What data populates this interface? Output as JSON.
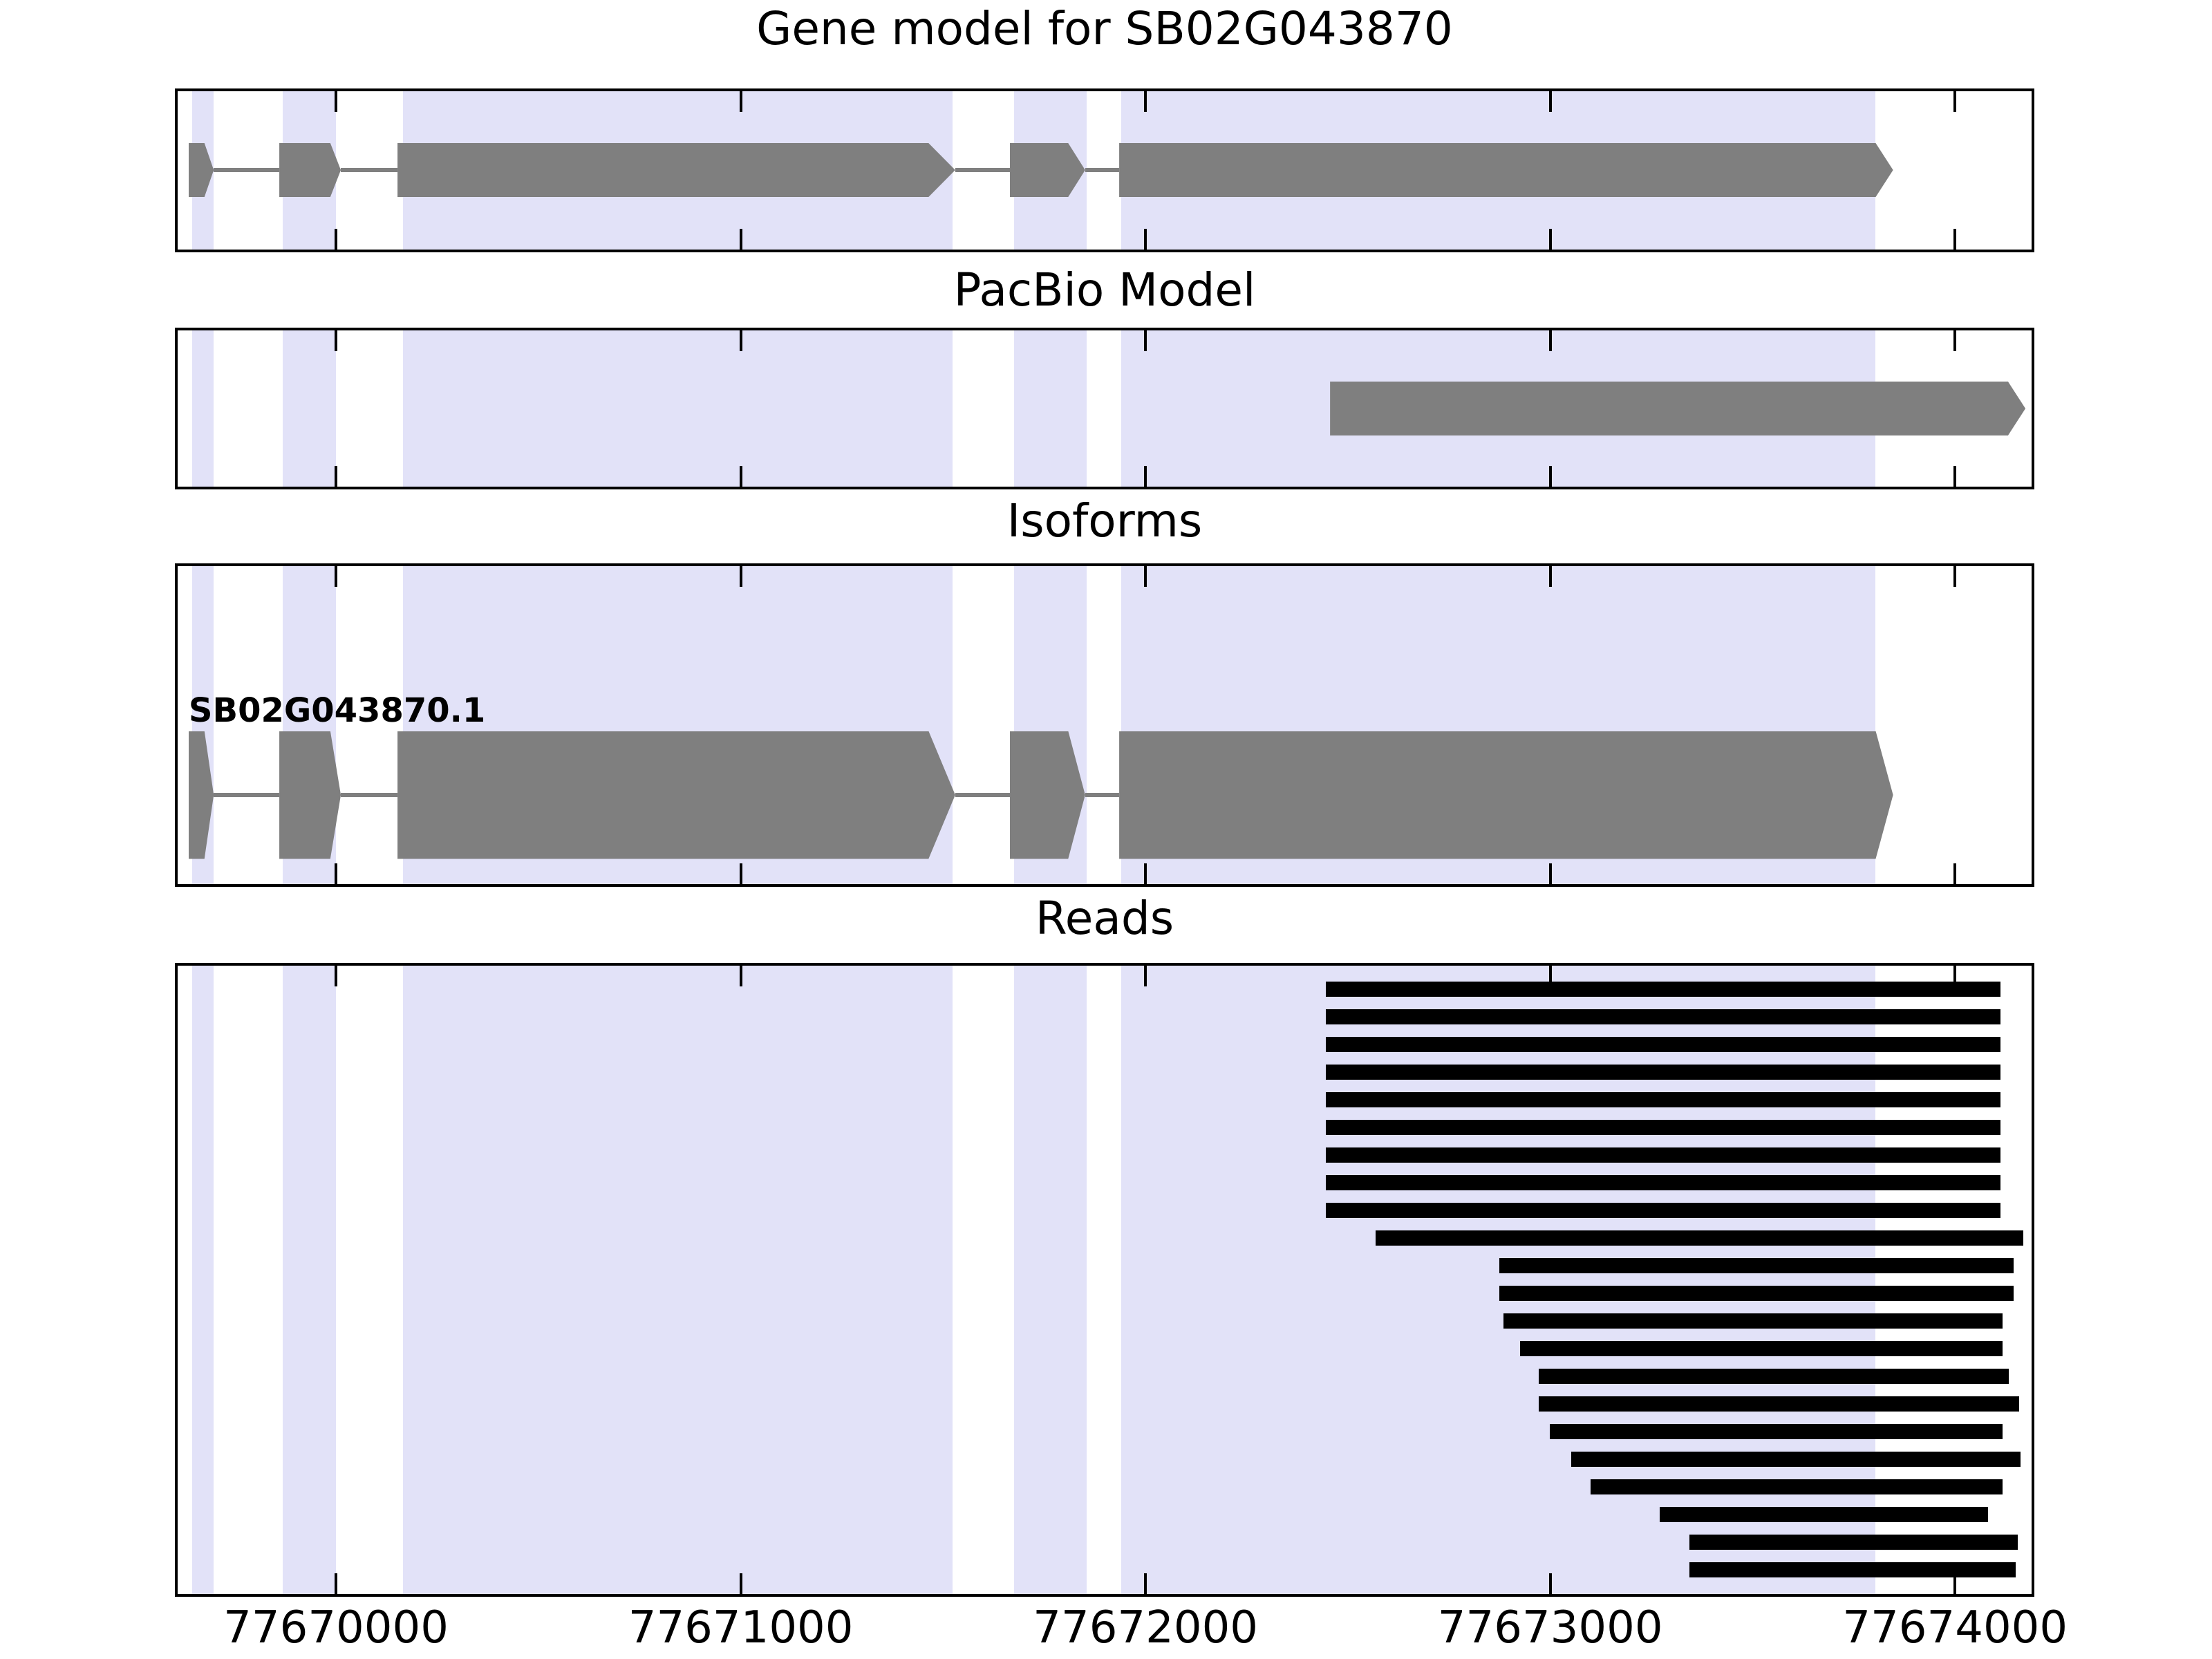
{
  "figure": {
    "colors": {
      "background": "#ffffff",
      "highlight_band": "#e2e2f8",
      "exon_gray": "#7f7f7f",
      "read_black": "#000000",
      "border_black": "#000000"
    }
  },
  "chart_data": {
    "type": "gene-model-tracks",
    "subtype": "genome-browser",
    "grid": false,
    "xlim_bp": [
      77669602,
      77674196
    ],
    "xaxis_ticks": [
      {
        "bp": 77670000,
        "label": "77670000"
      },
      {
        "bp": 77671000,
        "label": "77671000"
      },
      {
        "bp": 77672000,
        "label": "77672000"
      },
      {
        "bp": 77673000,
        "label": "77673000"
      },
      {
        "bp": 77674000,
        "label": "77674000"
      }
    ],
    "panels": [
      {
        "key": "gene",
        "title": "Gene model for SB02G043870"
      },
      {
        "key": "pacbio",
        "title": "PacBio Model"
      },
      {
        "key": "isoforms",
        "title": "Isoforms"
      },
      {
        "key": "reads",
        "title": "Reads"
      }
    ],
    "highlight_bands_bp": [
      {
        "start": 77669645,
        "end": 77669698
      },
      {
        "start": 77669869,
        "end": 77670000
      },
      {
        "start": 77670166,
        "end": 77671524
      },
      {
        "start": 77671676,
        "end": 77671855
      },
      {
        "start": 77671940,
        "end": 77673804
      }
    ],
    "gene_model": {
      "label": "SB02G043870.1",
      "strand": "+",
      "exons_bp": [
        {
          "start": 77669636,
          "block_end": 77669675,
          "tip": 77669698
        },
        {
          "start": 77669860,
          "block_end": 77669986,
          "tip": 77670012
        },
        {
          "start": 77670152,
          "block_end": 77671464,
          "tip": 77671530
        },
        {
          "start": 77671665,
          "block_end": 77671809,
          "tip": 77671851
        },
        {
          "start": 77671935,
          "block_end": 77673804,
          "tip": 77673847
        }
      ],
      "introns_bp": [
        {
          "start": 77669698,
          "end": 77669860
        },
        {
          "start": 77670012,
          "end": 77670152
        },
        {
          "start": 77671530,
          "end": 77671665
        },
        {
          "start": 77671851,
          "end": 77671935
        }
      ]
    },
    "pacbio_model": {
      "start": 77672456,
      "block_end": 77674131,
      "tip": 77674174
    },
    "reads_bp": [
      {
        "start": 77672446,
        "end": 77674113
      },
      {
        "start": 77672446,
        "end": 77674113
      },
      {
        "start": 77672446,
        "end": 77674113
      },
      {
        "start": 77672446,
        "end": 77674113
      },
      {
        "start": 77672446,
        "end": 77674113
      },
      {
        "start": 77672446,
        "end": 77674113
      },
      {
        "start": 77672446,
        "end": 77674113
      },
      {
        "start": 77672446,
        "end": 77674113
      },
      {
        "start": 77672446,
        "end": 77674113
      },
      {
        "start": 77672569,
        "end": 77674168
      },
      {
        "start": 77672875,
        "end": 77674145
      },
      {
        "start": 77672875,
        "end": 77674145
      },
      {
        "start": 77672885,
        "end": 77674118
      },
      {
        "start": 77672926,
        "end": 77674118
      },
      {
        "start": 77672972,
        "end": 77674133
      },
      {
        "start": 77672972,
        "end": 77674159
      },
      {
        "start": 77672999,
        "end": 77674118
      },
      {
        "start": 77673051,
        "end": 77674162
      },
      {
        "start": 77673100,
        "end": 77674118
      },
      {
        "start": 77673271,
        "end": 77674082
      },
      {
        "start": 77673344,
        "end": 77674155
      },
      {
        "start": 77673344,
        "end": 77674150
      }
    ]
  }
}
